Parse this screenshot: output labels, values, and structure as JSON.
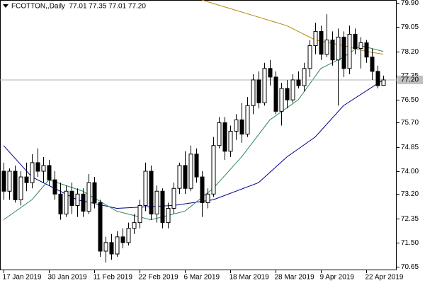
{
  "chart_data": {
    "type": "candlestick",
    "title": "FCOTTON,,Daily  77.01 77.35 77.01 77.20",
    "categories": [
      "17 Jan 2019",
      null,
      null,
      null,
      null,
      null,
      null,
      null,
      "30 Jan 2019",
      null,
      null,
      null,
      null,
      null,
      null,
      null,
      "11 Feb 2019",
      null,
      null,
      null,
      null,
      null,
      null,
      null,
      "22 Feb 2019",
      null,
      null,
      null,
      null,
      null,
      null,
      null,
      "6 Mar 2019",
      null,
      null,
      null,
      null,
      null,
      null,
      null,
      "18 Mar 2019",
      null,
      null,
      null,
      null,
      null,
      null,
      null,
      "28 Mar 2019",
      null,
      null,
      null,
      null,
      null,
      null,
      null,
      "9 Apr 2019",
      null,
      null,
      null,
      null,
      null,
      null,
      null,
      "22 Apr 2019",
      null,
      null,
      null
    ],
    "open": [
      74.0,
      73.3,
      74.0,
      73.0,
      73.8,
      73.6,
      74.3,
      74.0,
      74.2,
      73.7,
      73.2,
      72.5,
      73.3,
      72.8,
      73.2,
      72.6,
      73.6,
      72.9,
      71.2,
      71.5,
      71.1,
      71.7,
      71.5,
      72.0,
      72.2,
      72.8,
      74.0,
      72.5,
      73.3,
      72.2,
      72.7,
      73.4,
      74.2,
      73.4,
      74.6,
      73.8,
      72.9,
      73.2,
      74.9,
      75.7,
      74.7,
      75.4,
      75.8,
      75.3,
      76.3,
      77.2,
      76.4,
      77.6,
      77.3,
      76.1,
      76.9,
      76.5,
      77.2,
      77.0,
      77.6,
      78.4,
      78.9,
      78.1,
      78.6,
      77.9,
      78.7,
      77.6,
      78.8,
      78.3,
      78.5,
      78.0,
      77.5,
      77.01
    ],
    "high": [
      74.3,
      74.1,
      74.2,
      74.0,
      74.3,
      74.6,
      74.8,
      74.5,
      74.4,
      74.0,
      73.6,
      73.5,
      73.6,
      73.4,
      73.4,
      73.9,
      73.8,
      73.0,
      71.7,
      71.8,
      71.9,
      72.0,
      72.2,
      72.5,
      73.0,
      74.3,
      74.2,
      73.5,
      73.4,
      72.9,
      73.6,
      74.3,
      74.7,
      74.9,
      74.8,
      74.0,
      73.4,
      75.2,
      75.9,
      75.9,
      75.6,
      76.0,
      76.4,
      76.6,
      77.4,
      77.5,
      77.8,
      77.9,
      77.5,
      77.1,
      77.2,
      77.4,
      77.5,
      77.8,
      78.6,
      79.2,
      79.1,
      79.5,
      78.9,
      79.0,
      78.9,
      79.1,
      79.0,
      78.7,
      78.6,
      78.3,
      77.7,
      77.35
    ],
    "low": [
      73.0,
      73.0,
      72.9,
      72.8,
      73.3,
      73.4,
      73.8,
      73.6,
      73.5,
      73.0,
      72.3,
      72.4,
      72.5,
      72.4,
      72.4,
      72.5,
      72.7,
      71.0,
      70.8,
      70.9,
      71.0,
      71.3,
      71.4,
      71.8,
      72.0,
      72.6,
      72.3,
      72.2,
      72.0,
      72.0,
      72.5,
      73.2,
      73.2,
      73.3,
      73.6,
      72.4,
      72.7,
      73.1,
      74.8,
      74.4,
      74.5,
      75.1,
      75.0,
      75.2,
      76.0,
      76.2,
      76.3,
      77.0,
      76.0,
      75.6,
      76.2,
      76.4,
      76.9,
      76.8,
      77.3,
      78.1,
      77.9,
      78.0,
      77.7,
      76.3,
      77.3,
      77.4,
      78.1,
      77.6,
      77.8,
      77.2,
      76.9,
      77.01
    ],
    "close": [
      73.3,
      74.0,
      73.0,
      73.8,
      73.6,
      74.3,
      74.0,
      74.2,
      73.7,
      73.2,
      72.5,
      73.3,
      72.8,
      73.2,
      72.6,
      73.6,
      72.9,
      71.2,
      71.5,
      71.1,
      71.7,
      71.5,
      72.0,
      72.2,
      72.8,
      74.0,
      72.5,
      73.3,
      72.2,
      72.7,
      73.4,
      74.2,
      73.4,
      74.6,
      73.8,
      72.9,
      73.2,
      74.9,
      75.7,
      74.7,
      75.4,
      75.8,
      75.3,
      76.3,
      77.2,
      76.4,
      77.6,
      77.3,
      76.1,
      76.9,
      76.5,
      77.2,
      77.0,
      77.6,
      78.4,
      78.9,
      78.1,
      78.6,
      77.9,
      78.7,
      77.6,
      78.8,
      78.3,
      78.5,
      78.0,
      77.5,
      77.0,
      77.2
    ],
    "up_color": "#ffffff",
    "down_color": "#000000",
    "moving_averages": [
      {
        "color": "#00008b",
        "x": [
          0,
          5,
          13,
          20,
          30,
          37,
          45,
          50,
          55,
          60,
          67
        ],
        "values": [
          74.9,
          73.8,
          73.0,
          72.7,
          72.8,
          73.0,
          73.6,
          74.5,
          75.2,
          76.3,
          77.2
        ]
      },
      {
        "color": "#2e8b57",
        "x": [
          0,
          5,
          8,
          14,
          20,
          26,
          32,
          37,
          42,
          47,
          52,
          56,
          60,
          63,
          67
        ],
        "values": [
          72.3,
          73.0,
          73.7,
          73.3,
          72.6,
          72.3,
          72.6,
          73.4,
          74.5,
          75.8,
          76.5,
          77.6,
          78.0,
          78.4,
          78.2
        ]
      },
      {
        "color": "#b8860b",
        "x": [
          35,
          40,
          45,
          50,
          55,
          60,
          64,
          67
        ],
        "values": [
          80.0,
          79.7,
          79.4,
          79.1,
          78.6,
          78.4,
          78.2,
          78.1
        ]
      }
    ],
    "last_price": {
      "value": 77.2,
      "label": "77.20"
    },
    "ylim": [
      70.53,
      80.0
    ],
    "yticks": [
      {
        "value": 79.9,
        "label": "79.90"
      },
      {
        "value": 79.05,
        "label": "79.05"
      },
      {
        "value": 78.2,
        "label": "78.20"
      },
      {
        "value": 77.35,
        "label": "77.35"
      },
      {
        "value": 76.5,
        "label": "76.50"
      },
      {
        "value": 75.7,
        "label": "75.70"
      },
      {
        "value": 74.85,
        "label": "74.85"
      },
      {
        "value": 74.0,
        "label": "74.00"
      },
      {
        "value": 73.2,
        "label": "73.20"
      },
      {
        "value": 72.35,
        "label": "72.35"
      },
      {
        "value": 71.5,
        "label": "71.50"
      },
      {
        "value": 70.65,
        "label": "70.65"
      }
    ],
    "grid": true
  }
}
